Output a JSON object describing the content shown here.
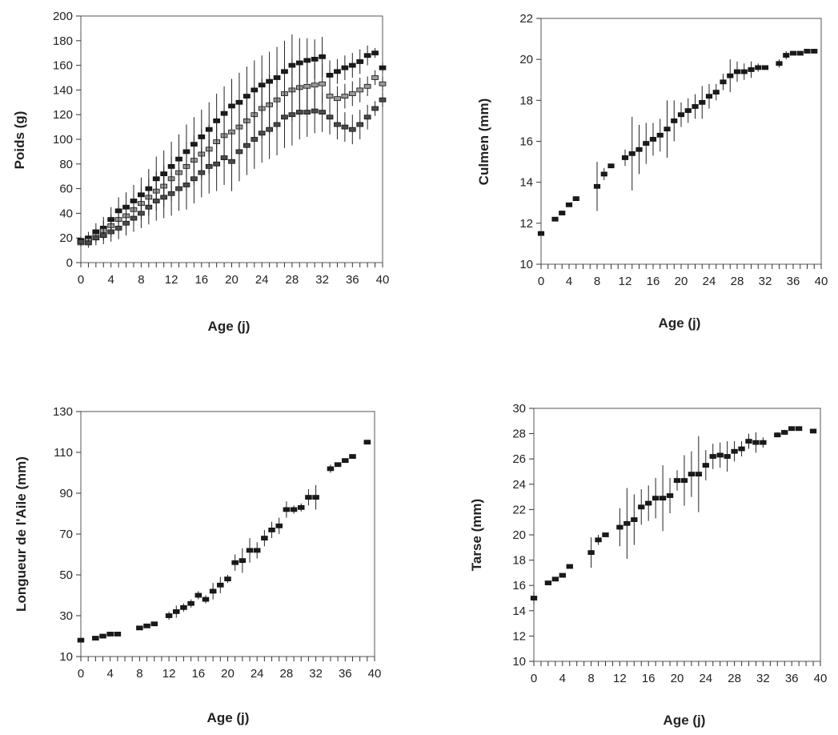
{
  "chart_data": [
    {
      "type": "scatter",
      "title": "",
      "xlabel": "Age (j)",
      "ylabel": "Poids (g)",
      "xlim": [
        0,
        40
      ],
      "ylim": [
        0,
        200
      ],
      "xticks": [
        "0",
        "4",
        "8",
        "12",
        "16",
        "20",
        "24",
        "28",
        "32",
        "36",
        "40"
      ],
      "yticks": [
        "0",
        "20",
        "40",
        "60",
        "80",
        "100",
        "120",
        "140",
        "160",
        "180",
        "200"
      ],
      "grid": false,
      "series": [
        {
          "x": [
            0,
            1,
            2,
            3,
            4,
            5,
            6,
            7,
            8,
            9,
            10,
            11,
            12,
            13,
            14,
            15,
            16,
            17,
            18,
            19,
            20,
            21,
            22,
            23,
            24,
            25,
            26,
            27,
            28,
            29,
            30,
            31,
            32,
            33,
            34,
            35,
            36,
            37,
            38,
            39,
            40
          ],
          "y": [
            18,
            20,
            25,
            28,
            35,
            42,
            45,
            50,
            55,
            60,
            68,
            72,
            78,
            84,
            90,
            96,
            102,
            108,
            115,
            121,
            127,
            130,
            135,
            140,
            144,
            147,
            150,
            155,
            160,
            162,
            164,
            165,
            167,
            152,
            155,
            158,
            160,
            163,
            168,
            170,
            158
          ],
          "err": [
            3,
            5,
            7,
            9,
            10,
            11,
            12,
            13,
            14,
            16,
            18,
            19,
            20,
            20,
            22,
            22,
            22,
            22,
            22,
            22,
            22,
            24,
            24,
            24,
            24,
            24,
            25,
            25,
            25,
            20,
            18,
            16,
            16,
            12,
            10,
            10,
            10,
            10,
            8,
            4,
            4
          ]
        },
        {
          "x": [
            0,
            1,
            2,
            3,
            4,
            5,
            6,
            7,
            8,
            9,
            10,
            11,
            12,
            13,
            14,
            15,
            16,
            17,
            18,
            19,
            20,
            21,
            22,
            23,
            24,
            25,
            26,
            27,
            28,
            29,
            30,
            31,
            32,
            33,
            34,
            35,
            36,
            37,
            38,
            39,
            40
          ],
          "y": [
            16,
            18,
            22,
            26,
            30,
            35,
            38,
            43,
            48,
            53,
            58,
            62,
            68,
            73,
            78,
            83,
            88,
            92,
            98,
            103,
            106,
            110,
            115,
            120,
            125,
            128,
            132,
            137,
            140,
            142,
            143,
            144,
            145,
            135,
            133,
            135,
            137,
            140,
            143,
            150,
            145
          ],
          "err": [
            3,
            4,
            6,
            8,
            9,
            10,
            11,
            12,
            13,
            15,
            16,
            17,
            18,
            18,
            20,
            20,
            20,
            20,
            20,
            22,
            22,
            22,
            22,
            22,
            24,
            24,
            25,
            25,
            25,
            22,
            20,
            18,
            16,
            12,
            10,
            10,
            10,
            10,
            8,
            6,
            6
          ]
        },
        {
          "x": [
            0,
            1,
            2,
            3,
            4,
            5,
            6,
            7,
            8,
            9,
            10,
            11,
            12,
            13,
            14,
            15,
            16,
            17,
            18,
            19,
            20,
            21,
            22,
            23,
            24,
            25,
            26,
            27,
            28,
            29,
            30,
            31,
            32,
            33,
            34,
            35,
            36,
            37,
            38,
            39,
            40
          ],
          "y": [
            17,
            16,
            20,
            22,
            25,
            28,
            32,
            36,
            40,
            45,
            50,
            53,
            56,
            60,
            63,
            68,
            73,
            78,
            80,
            85,
            82,
            90,
            95,
            100,
            105,
            108,
            112,
            118,
            120,
            122,
            122,
            123,
            122,
            118,
            112,
            110,
            108,
            112,
            118,
            125,
            132
          ],
          "err": [
            3,
            4,
            6,
            7,
            8,
            9,
            10,
            11,
            12,
            14,
            16,
            17,
            18,
            18,
            20,
            20,
            20,
            22,
            22,
            22,
            24,
            24,
            24,
            24,
            24,
            24,
            25,
            25,
            25,
            22,
            20,
            18,
            16,
            14,
            12,
            12,
            12,
            12,
            10,
            6,
            6
          ]
        }
      ]
    },
    {
      "type": "scatter",
      "title": "",
      "xlabel": "Age (j)",
      "ylabel": "Culmen (mm)",
      "xlim": [
        0,
        40
      ],
      "ylim": [
        10,
        22
      ],
      "xticks": [
        "0",
        "4",
        "8",
        "12",
        "16",
        "20",
        "24",
        "28",
        "32",
        "36",
        "40"
      ],
      "yticks": [
        "10",
        "12",
        "14",
        "16",
        "18",
        "20",
        "22"
      ],
      "grid": false,
      "series": [
        {
          "x": [
            0,
            2,
            3,
            4,
            5,
            8,
            9,
            10,
            12,
            13,
            14,
            15,
            16,
            17,
            18,
            19,
            20,
            21,
            22,
            23,
            24,
            25,
            26,
            27,
            28,
            29,
            30,
            31,
            32,
            34,
            35,
            36,
            37,
            38,
            39
          ],
          "y": [
            11.5,
            12.2,
            12.5,
            12.9,
            13.2,
            13.8,
            14.4,
            14.8,
            15.2,
            15.4,
            15.6,
            15.9,
            16.1,
            16.3,
            16.6,
            17.0,
            17.3,
            17.5,
            17.7,
            17.9,
            18.2,
            18.4,
            18.9,
            19.2,
            19.4,
            19.4,
            19.5,
            19.6,
            19.6,
            19.8,
            20.2,
            20.3,
            20.3,
            20.4,
            20.4
          ],
          "err": [
            0,
            0,
            0,
            0,
            0,
            1.2,
            0.3,
            0,
            0.4,
            1.8,
            1.2,
            1.0,
            0.8,
            0.8,
            1.4,
            1.0,
            0.6,
            0.6,
            0.6,
            0.8,
            0.6,
            0.4,
            0.4,
            0.8,
            0.5,
            0.4,
            0.4,
            0.2,
            0,
            0.2,
            0.2,
            0,
            0,
            0,
            0
          ]
        }
      ]
    },
    {
      "type": "scatter",
      "title": "",
      "xlabel": "Age (j)",
      "ylabel": "Longueur de l'Aile (mm)",
      "xlim": [
        0,
        40
      ],
      "ylim": [
        10,
        130
      ],
      "xticks": [
        "0",
        "4",
        "8",
        "12",
        "16",
        "20",
        "24",
        "28",
        "32",
        "36",
        "40"
      ],
      "yticks": [
        "10",
        "30",
        "50",
        "70",
        "90",
        "110",
        "130"
      ],
      "grid": false,
      "series": [
        {
          "x": [
            0,
            2,
            3,
            4,
            5,
            8,
            9,
            10,
            12,
            13,
            14,
            15,
            16,
            17,
            18,
            19,
            20,
            21,
            22,
            23,
            24,
            25,
            26,
            27,
            28,
            29,
            30,
            31,
            32,
            34,
            35,
            36,
            37,
            39
          ],
          "y": [
            18,
            19,
            20,
            21,
            21,
            24,
            25,
            26,
            30,
            32,
            34,
            36,
            40,
            38,
            42,
            45,
            48,
            56,
            57,
            62,
            62,
            68,
            72,
            74,
            82,
            82,
            83,
            88,
            88,
            102,
            104,
            106,
            108,
            115
          ],
          "err": [
            0,
            0,
            0,
            0,
            0,
            1,
            0,
            0,
            2,
            3,
            2,
            2,
            2,
            2,
            4,
            4,
            2,
            4,
            6,
            6,
            4,
            4,
            4,
            4,
            4,
            2,
            2,
            4,
            6,
            2,
            0,
            0,
            0,
            0
          ]
        }
      ]
    },
    {
      "type": "scatter",
      "title": "",
      "xlabel": "Age (j)",
      "ylabel": "Tarse (mm)",
      "xlim": [
        0,
        40
      ],
      "ylim": [
        10,
        30
      ],
      "xticks": [
        "0",
        "4",
        "8",
        "12",
        "16",
        "20",
        "24",
        "28",
        "32",
        "36",
        "40"
      ],
      "yticks": [
        "10",
        "12",
        "14",
        "16",
        "18",
        "20",
        "22",
        "24",
        "26",
        "28",
        "30"
      ],
      "grid": false,
      "series": [
        {
          "x": [
            0,
            2,
            3,
            4,
            5,
            8,
            9,
            10,
            12,
            13,
            14,
            15,
            16,
            17,
            18,
            19,
            20,
            21,
            22,
            23,
            24,
            25,
            26,
            27,
            28,
            29,
            30,
            31,
            32,
            34,
            35,
            36,
            37,
            39
          ],
          "y": [
            15.0,
            16.2,
            16.5,
            16.8,
            17.5,
            18.6,
            19.6,
            20.0,
            20.6,
            20.9,
            21.2,
            22.2,
            22.5,
            22.9,
            22.9,
            23.1,
            24.3,
            24.3,
            24.8,
            24.8,
            25.5,
            26.2,
            26.3,
            26.2,
            26.6,
            26.8,
            27.4,
            27.3,
            27.3,
            27.9,
            28.1,
            28.4,
            28.4,
            28.2
          ],
          "err": [
            0.5,
            0,
            0,
            0,
            0,
            1.2,
            0.4,
            0,
            1.5,
            2.8,
            2.0,
            1.4,
            1.4,
            1.6,
            2.6,
            1.4,
            0.8,
            2.0,
            1.8,
            3.0,
            1.2,
            1.0,
            1.0,
            1.2,
            0.8,
            0.6,
            0.6,
            0.8,
            0.4,
            0.2,
            0.2,
            0,
            0,
            0
          ]
        }
      ]
    }
  ]
}
